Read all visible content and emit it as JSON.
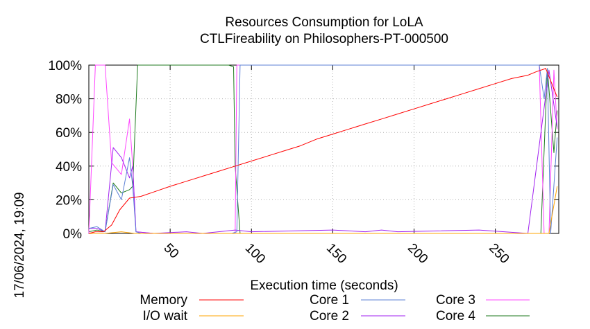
{
  "side_label": "17/06/2024, 19:09",
  "chart_data": {
    "type": "line",
    "title": "Resources Consumption for LoLA",
    "subtitle": "CTLFireability on Philosophers-PT-000500",
    "xlabel": "Execution time (seconds)",
    "ylabel": "",
    "xlim": [
      0,
      289
    ],
    "ylim": [
      0,
      100
    ],
    "x_ticks": [
      50,
      100,
      150,
      200,
      250
    ],
    "y_ticks": [
      {
        "value": 0,
        "label": "0%"
      },
      {
        "value": 20,
        "label": "20%"
      },
      {
        "value": 40,
        "label": "40%"
      },
      {
        "value": 60,
        "label": "60%"
      },
      {
        "value": 80,
        "label": "80%"
      },
      {
        "value": 100,
        "label": "100%"
      }
    ],
    "grid": true,
    "legend_position": "bottom",
    "series": [
      {
        "name": "Memory",
        "color": "#ff0000",
        "points": [
          [
            0,
            0
          ],
          [
            4,
            1
          ],
          [
            9,
            1
          ],
          [
            14,
            5
          ],
          [
            19,
            14
          ],
          [
            25,
            21
          ],
          [
            32,
            22
          ],
          [
            41,
            25
          ],
          [
            50,
            28
          ],
          [
            60,
            31
          ],
          [
            70,
            34
          ],
          [
            80,
            37
          ],
          [
            90,
            40
          ],
          [
            100,
            43
          ],
          [
            110,
            46
          ],
          [
            120,
            49
          ],
          [
            130,
            52
          ],
          [
            140,
            56
          ],
          [
            150,
            59
          ],
          [
            160,
            62
          ],
          [
            170,
            65
          ],
          [
            180,
            68
          ],
          [
            190,
            71
          ],
          [
            200,
            74
          ],
          [
            210,
            77
          ],
          [
            220,
            80
          ],
          [
            230,
            83
          ],
          [
            240,
            86
          ],
          [
            250,
            89
          ],
          [
            260,
            92
          ],
          [
            270,
            94
          ],
          [
            275,
            96
          ],
          [
            281,
            98
          ],
          [
            288,
            81
          ]
        ]
      },
      {
        "name": "I/O wait",
        "color": "#ffa500",
        "points": [
          [
            0,
            0
          ],
          [
            10,
            0
          ],
          [
            20,
            1
          ],
          [
            28,
            0
          ],
          [
            40,
            0
          ],
          [
            100,
            0
          ],
          [
            150,
            0
          ],
          [
            200,
            0
          ],
          [
            250,
            0
          ],
          [
            278,
            0
          ],
          [
            283,
            0
          ],
          [
            288,
            28
          ]
        ]
      },
      {
        "name": "Core 1",
        "color": "#5b7fd6",
        "points": [
          [
            0,
            3
          ],
          [
            5,
            4
          ],
          [
            10,
            1
          ],
          [
            15,
            29
          ],
          [
            20,
            20
          ],
          [
            25,
            45
          ],
          [
            27,
            28
          ],
          [
            29,
            1
          ],
          [
            32,
            0
          ],
          [
            60,
            0
          ],
          [
            88,
            0
          ],
          [
            91,
            1
          ],
          [
            93,
            100
          ],
          [
            150,
            100
          ],
          [
            200,
            100
          ],
          [
            250,
            100
          ],
          [
            277,
            100
          ],
          [
            280,
            80
          ],
          [
            282,
            98
          ],
          [
            284,
            0
          ],
          [
            288,
            57
          ]
        ]
      },
      {
        "name": "Core 2",
        "color": "#a020f0",
        "points": [
          [
            0,
            3
          ],
          [
            5,
            3
          ],
          [
            10,
            1
          ],
          [
            15,
            51
          ],
          [
            20,
            45
          ],
          [
            25,
            33
          ],
          [
            27,
            40
          ],
          [
            29,
            1
          ],
          [
            40,
            0
          ],
          [
            60,
            1
          ],
          [
            70,
            0
          ],
          [
            90,
            2
          ],
          [
            100,
            1
          ],
          [
            150,
            2
          ],
          [
            170,
            1
          ],
          [
            180,
            2
          ],
          [
            190,
            1
          ],
          [
            240,
            2
          ],
          [
            270,
            0
          ],
          [
            283,
            97
          ],
          [
            288,
            63
          ]
        ]
      },
      {
        "name": "Core 3",
        "color": "#ff44ff",
        "points": [
          [
            0,
            0
          ],
          [
            4,
            100
          ],
          [
            10,
            100
          ],
          [
            14,
            42
          ],
          [
            20,
            35
          ],
          [
            25,
            68
          ],
          [
            27,
            40
          ],
          [
            29,
            1
          ],
          [
            40,
            0
          ],
          [
            90,
            0
          ],
          [
            91,
            100
          ],
          [
            200,
            100
          ],
          [
            277,
            100
          ],
          [
            280,
            0
          ],
          [
            283,
            0
          ],
          [
            286,
            97
          ],
          [
            288,
            62
          ]
        ]
      },
      {
        "name": "Core 4",
        "color": "#1d7a1d",
        "points": [
          [
            0,
            1
          ],
          [
            5,
            2
          ],
          [
            10,
            1
          ],
          [
            15,
            30
          ],
          [
            20,
            24
          ],
          [
            25,
            26
          ],
          [
            27,
            28
          ],
          [
            30,
            100
          ],
          [
            60,
            100
          ],
          [
            86,
            100
          ],
          [
            89,
            99
          ],
          [
            90,
            40
          ],
          [
            93,
            0
          ],
          [
            150,
            0
          ],
          [
            220,
            0
          ],
          [
            278,
            0
          ],
          [
            282,
            98
          ],
          [
            286,
            48
          ],
          [
            288,
            73
          ]
        ]
      }
    ]
  }
}
